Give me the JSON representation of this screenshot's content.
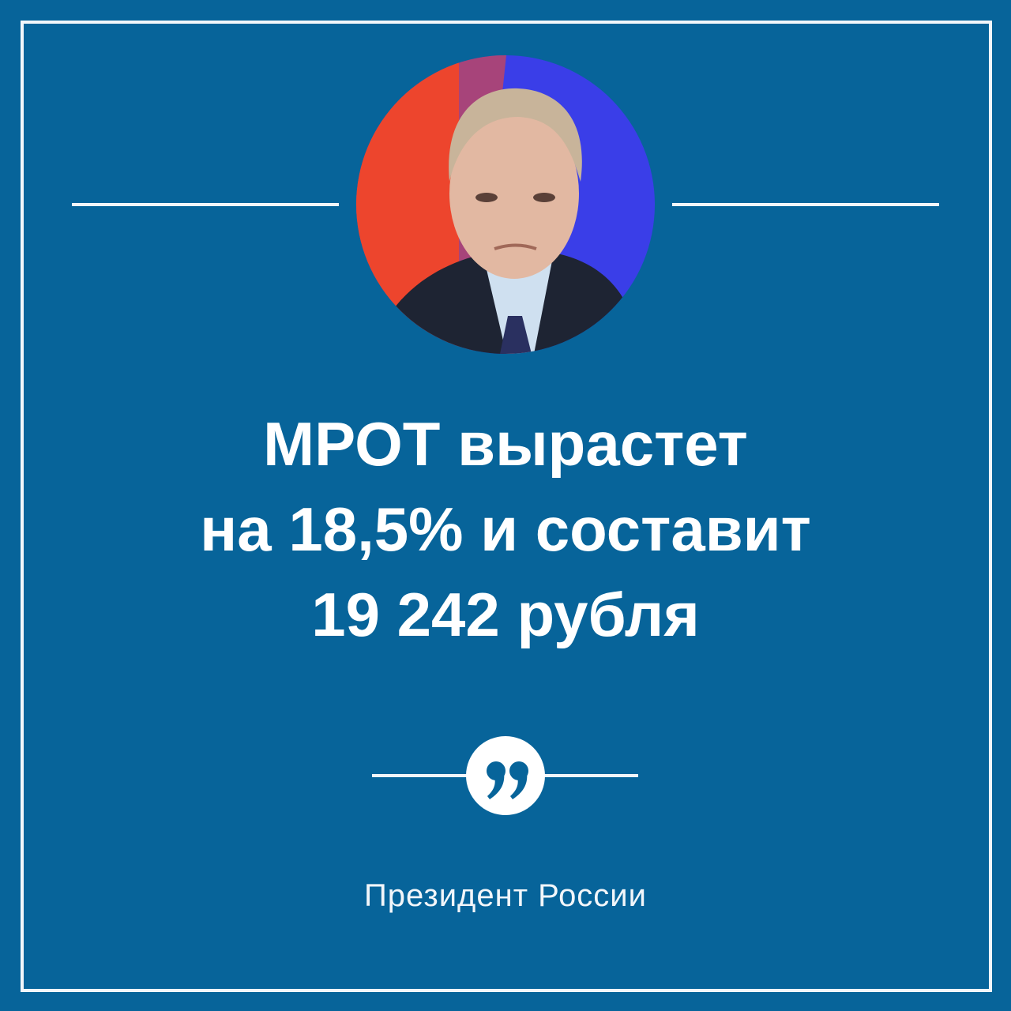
{
  "colors": {
    "background": "#07649a",
    "text": "#ffffff"
  },
  "portrait": {
    "icon": "portrait-photo"
  },
  "headline": {
    "lines": [
      "МРОТ вырастет",
      "на 18,5% и составит",
      "19 242 рубля"
    ]
  },
  "quote": {
    "icon": "quote-mark-icon"
  },
  "source": {
    "text": "Президент России"
  }
}
